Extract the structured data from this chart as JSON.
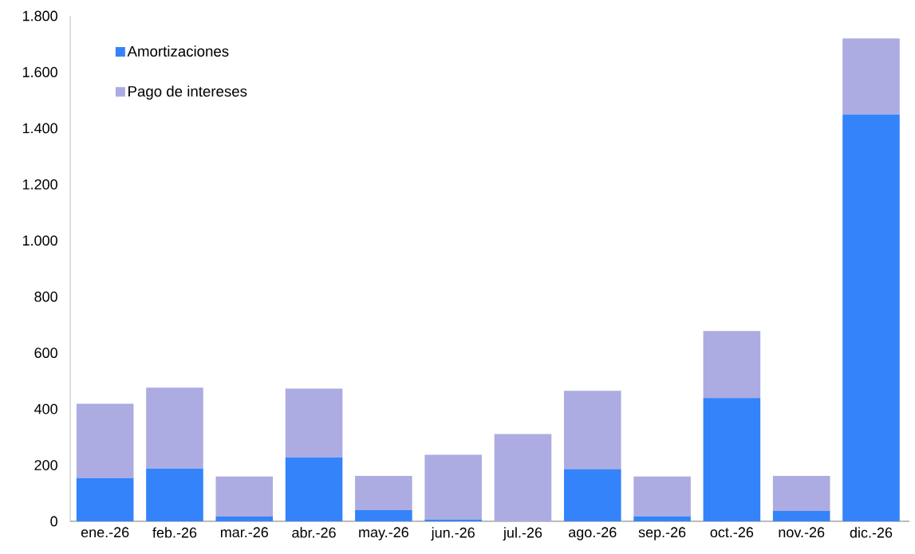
{
  "chart_data": {
    "type": "bar",
    "stacked": true,
    "categories": [
      "ene.-26",
      "feb.-26",
      "mar.-26",
      "abr.-26",
      "may.-26",
      "jun.-26",
      "jul.-26",
      "ago.-26",
      "sep.-26",
      "oct.-26",
      "nov.-26",
      "dic.-26"
    ],
    "series": [
      {
        "name": "Amortizaciones",
        "color": "#3483fa",
        "values": [
          154,
          188,
          17,
          228,
          40,
          6,
          0,
          186,
          18,
          439,
          37,
          1450
        ]
      },
      {
        "name": "Pago de intereses",
        "color": "#acace2",
        "values": [
          265,
          288,
          143,
          245,
          122,
          231,
          311,
          279,
          142,
          239,
          125,
          270
        ]
      }
    ],
    "ylim": [
      0,
      1800
    ],
    "yticks": [
      0,
      200,
      400,
      600,
      800,
      {
        "value": 1000,
        "label": "1.000"
      },
      {
        "value": 1200,
        "label": "1.200"
      },
      {
        "value": 1400,
        "label": "1.400"
      },
      {
        "value": 1600,
        "label": "1.600"
      },
      {
        "value": 1800,
        "label": "1.800"
      }
    ],
    "legend": "top left",
    "grid": false
  }
}
